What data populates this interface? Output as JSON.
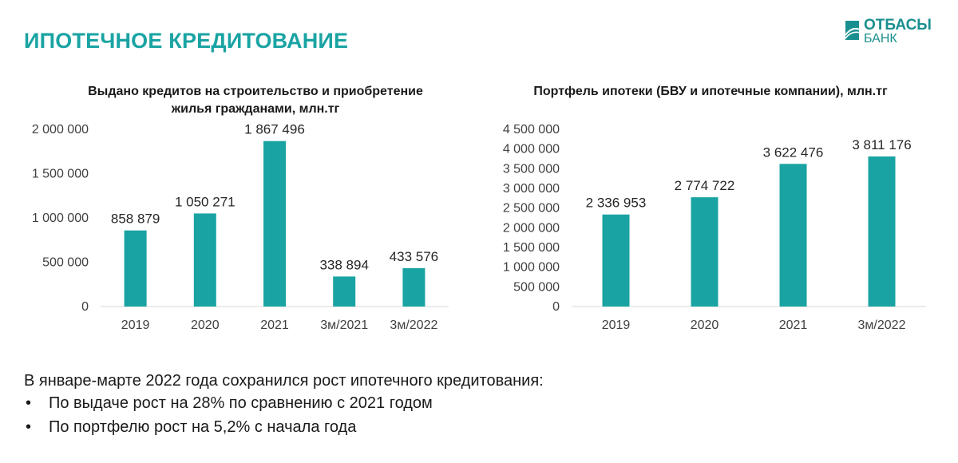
{
  "header": {
    "title": "ИПОТЕЧНОЕ КРЕДИТОВАНИЕ",
    "logo_name": "ОТБАСЫ",
    "logo_sub": "БАНК"
  },
  "colors": {
    "accent": "#1aa3a3",
    "bar": "#1aa3a3",
    "logo": "#1a8f8f"
  },
  "chart_data": [
    {
      "type": "bar",
      "title": "Выдано кредитов на строительство и приобретение жилья гражданами, млн.тг",
      "categories": [
        "2019",
        "2020",
        "2021",
        "3м/2021",
        "3м/2022"
      ],
      "values": [
        858879,
        1050271,
        1867496,
        338894,
        433576
      ],
      "value_labels": [
        "858 879",
        "1 050 271",
        "1 867 496",
        "338 894",
        "433 576"
      ],
      "ylim": [
        0,
        2000000
      ],
      "yticks": [
        0,
        500000,
        1000000,
        1500000,
        2000000
      ],
      "ytick_labels": [
        "0",
        "500 000",
        "1 000 000",
        "1 500 000",
        "2 000 000"
      ],
      "grid": false,
      "legend": "none"
    },
    {
      "type": "bar",
      "title": "Портфель ипотеки (БВУ и ипотечные компании), млн.тг",
      "categories": [
        "2019",
        "2020",
        "2021",
        "3м/2022"
      ],
      "values": [
        2336953,
        2774722,
        3622476,
        3811176
      ],
      "value_labels": [
        "2 336 953",
        "2 774 722",
        "3 622 476",
        "3 811 176"
      ],
      "ylim": [
        0,
        4500000
      ],
      "yticks": [
        0,
        500000,
        1000000,
        1500000,
        2000000,
        2500000,
        3000000,
        3500000,
        4000000,
        4500000
      ],
      "ytick_labels": [
        "0",
        "500 000",
        "1 000 000",
        "1 500 000",
        "2 000 000",
        "2 500 000",
        "3 000 000",
        "3 500 000",
        "4 000 000",
        "4 500 000"
      ],
      "grid": false,
      "legend": "none"
    }
  ],
  "summary": {
    "text": "В январе-марте 2022 года сохранился рост ипотечного кредитования:",
    "bullet_char": "•",
    "bullets": [
      "По выдаче рост на 28% по сравнению с 2021 годом",
      "По портфелю рост на 5,2% с начала года"
    ]
  }
}
